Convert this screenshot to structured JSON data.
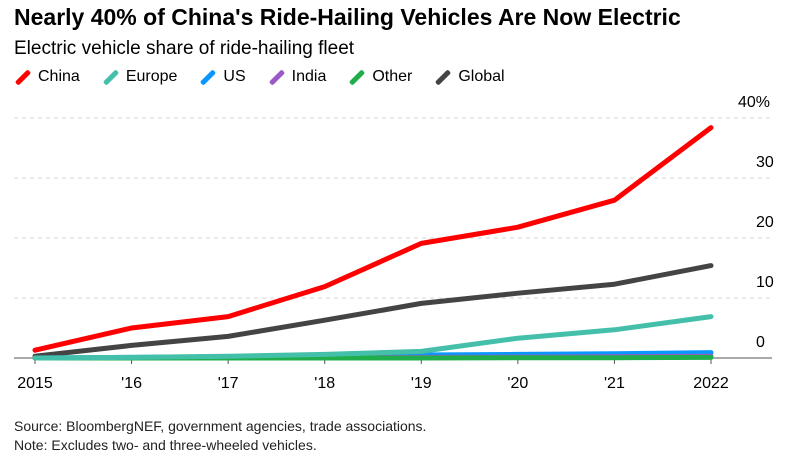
{
  "chart_data": {
    "type": "line",
    "title": "Nearly 40% of China's Ride-Hailing Vehicles Are Now Electric",
    "subtitle": "Electric vehicle share of ride-hailing fleet",
    "x": [
      2015,
      2016,
      2017,
      2018,
      2019,
      2020,
      2021,
      2022
    ],
    "x_tick_labels": [
      "2015",
      "'16",
      "'17",
      "'18",
      "'19",
      "'20",
      "'21",
      "2022"
    ],
    "y_tick_labels": [
      "0",
      "10",
      "20",
      "30",
      "40%"
    ],
    "y_ticks": [
      0,
      10,
      20,
      30,
      40
    ],
    "ylim": [
      0,
      40
    ],
    "grid": true,
    "legend_placement": "top-left",
    "series": [
      {
        "name": "China",
        "color": "#ff0000",
        "values": [
          1.3,
          5.0,
          6.9,
          11.9,
          19.1,
          21.8,
          26.3,
          38.4
        ]
      },
      {
        "name": "Europe",
        "color": "#44c0aa",
        "values": [
          0,
          0.1,
          0.3,
          0.6,
          1.1,
          3.3,
          4.7,
          6.9
        ]
      },
      {
        "name": "US",
        "color": "#0a96ff",
        "values": [
          0,
          0.1,
          0.2,
          0.3,
          0.5,
          0.6,
          0.7,
          0.9
        ]
      },
      {
        "name": "India",
        "color": "#9b59c8",
        "values": [
          0,
          0,
          0,
          0.05,
          0.1,
          0.15,
          0.2,
          0.3
        ]
      },
      {
        "name": "Other",
        "color": "#1fae4b",
        "values": [
          0,
          0,
          0,
          0,
          0,
          0.05,
          0.05,
          0.1
        ]
      },
      {
        "name": "Global",
        "color": "#444444",
        "values": [
          0.3,
          2.1,
          3.6,
          6.3,
          9.1,
          10.8,
          12.3,
          15.4
        ]
      }
    ]
  },
  "source": "Source: BloombergNEF, government agencies, trade associations.",
  "note": "Note: Excludes two- and three-wheeled vehicles."
}
